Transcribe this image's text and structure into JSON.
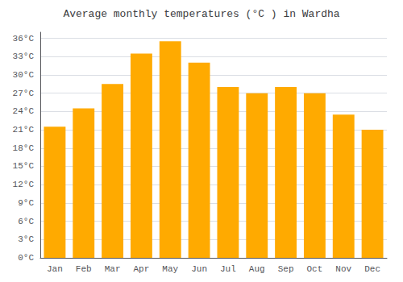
{
  "chart_data": {
    "type": "bar",
    "title": "Average monthly temperatures (°C ) in Wardha",
    "categories": [
      "Jan",
      "Feb",
      "Mar",
      "Apr",
      "May",
      "Jun",
      "Jul",
      "Aug",
      "Sep",
      "Oct",
      "Nov",
      "Dec"
    ],
    "values": [
      21.5,
      24.5,
      28.5,
      33.5,
      35.5,
      32.0,
      28.0,
      27.0,
      28.0,
      27.0,
      23.5,
      21.0
    ],
    "color": "#FFAA00",
    "ylim": [
      0,
      37
    ],
    "yticks": [
      {
        "value": 0,
        "label": "0°C"
      },
      {
        "value": 3,
        "label": "3°C"
      },
      {
        "value": 6,
        "label": "6°C"
      },
      {
        "value": 9,
        "label": "9°C"
      },
      {
        "value": 12,
        "label": "12°C"
      },
      {
        "value": 15,
        "label": "15°C"
      },
      {
        "value": 18,
        "label": "18°C"
      },
      {
        "value": 21,
        "label": "21°C"
      },
      {
        "value": 24,
        "label": "24°C"
      },
      {
        "value": 27,
        "label": "27°C"
      },
      {
        "value": 30,
        "label": "30°C"
      },
      {
        "value": 33,
        "label": "33°C"
      },
      {
        "value": 36,
        "label": "36°C"
      }
    ],
    "grid": true
  }
}
